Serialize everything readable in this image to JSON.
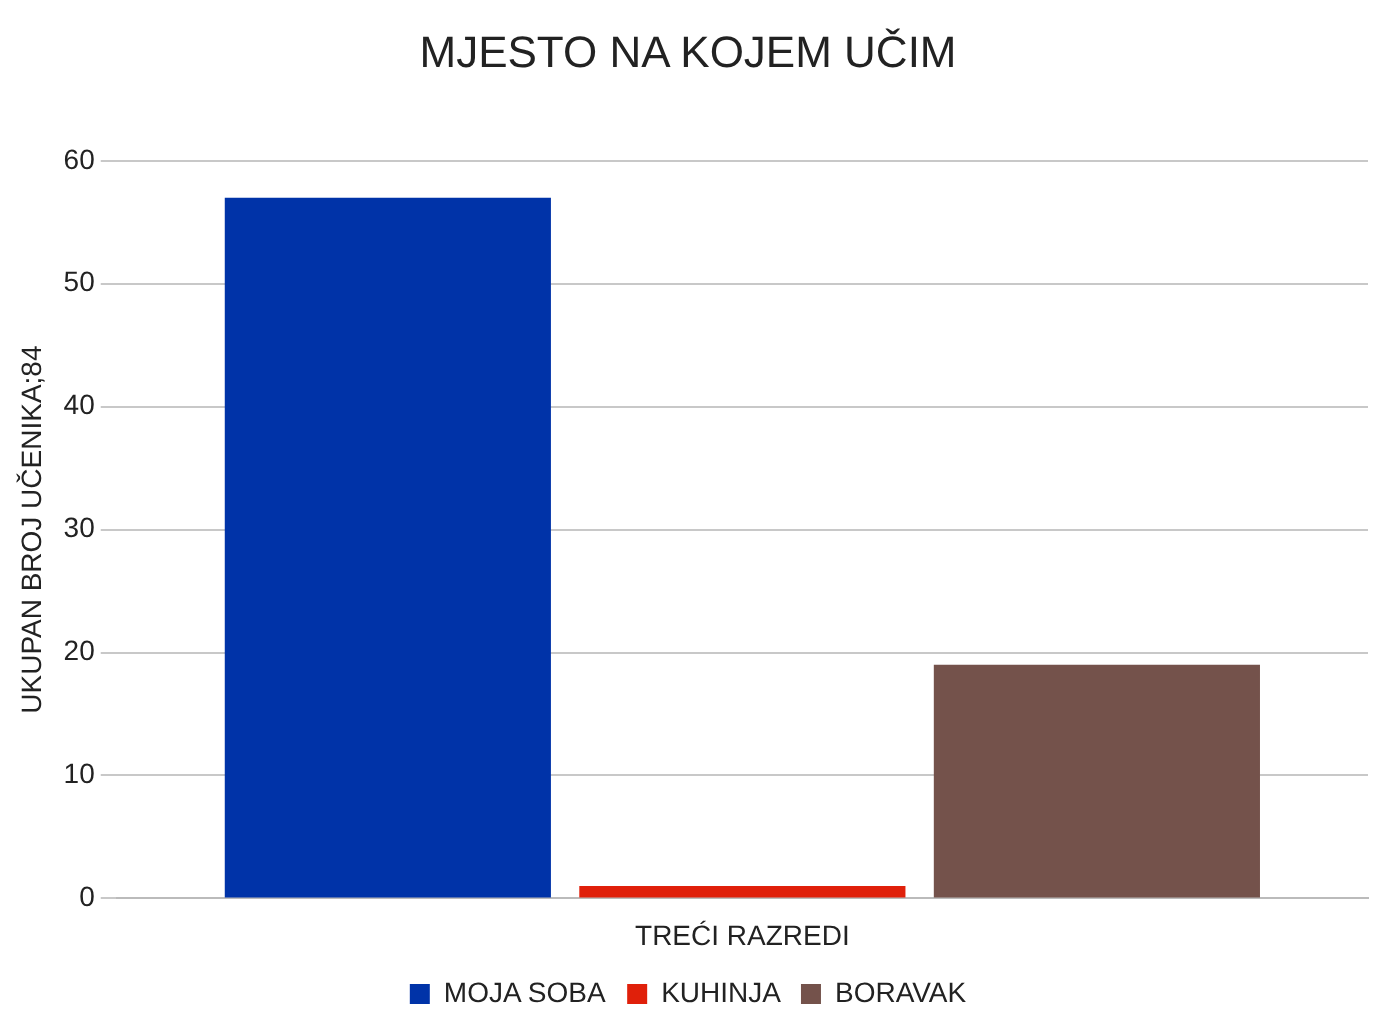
{
  "chart_data": {
    "type": "bar",
    "title": "MJESTO NA KOJEM UČIM",
    "ylabel": "UKUPAN BROJ UČENIKA;84",
    "categories": [
      "TREĆI RAZREDI"
    ],
    "series": [
      {
        "name": "MOJA SOBA",
        "color": "#0033a8",
        "values": [
          57
        ]
      },
      {
        "name": "KUHINJA",
        "color": "#e0200a",
        "values": [
          1
        ]
      },
      {
        "name": "BORAVAK",
        "color": "#74524b",
        "values": [
          19
        ]
      }
    ],
    "ylim": [
      0,
      60
    ],
    "yticks": [
      0,
      10,
      20,
      30,
      40,
      50,
      60
    ],
    "grid": "y",
    "legend": "bottom"
  }
}
